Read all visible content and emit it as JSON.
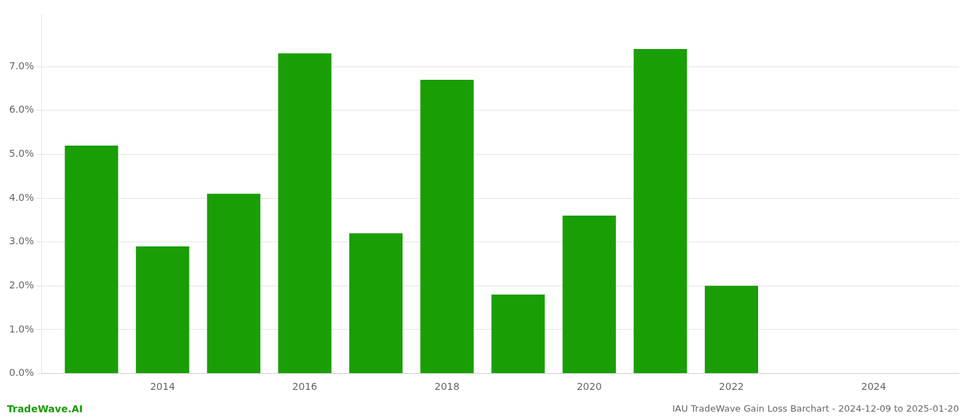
{
  "chart_data": {
    "type": "bar",
    "title": "IAU TradeWave Gain Loss Barchart - 2024-12-09 to 2025-01-20",
    "annotations": [
      "TradeWave.AI"
    ],
    "x": [
      2013,
      2014,
      2015,
      2016,
      2017,
      2018,
      2019,
      2020,
      2021,
      2022
    ],
    "values": [
      0.052,
      0.029,
      0.041,
      0.073,
      0.032,
      0.067,
      0.018,
      0.036,
      0.074,
      0.02
    ],
    "color": "#1a9e06",
    "xlim": [
      2012.3,
      2025.2
    ],
    "xticks": [
      2014,
      2016,
      2018,
      2020,
      2022,
      2024
    ],
    "ylim": [
      0.0,
      0.082
    ],
    "yticks": [
      {
        "value": 0.0,
        "label": "0.0%"
      },
      {
        "value": 0.01,
        "label": "1.0%"
      },
      {
        "value": 0.02,
        "label": "2.0%"
      },
      {
        "value": 0.03,
        "label": "3.0%"
      },
      {
        "value": 0.04,
        "label": "4.0%"
      },
      {
        "value": 0.05,
        "label": "5.0%"
      },
      {
        "value": 0.06,
        "label": "6.0%"
      },
      {
        "value": 0.07,
        "label": "7.0%"
      }
    ],
    "grid": true
  }
}
